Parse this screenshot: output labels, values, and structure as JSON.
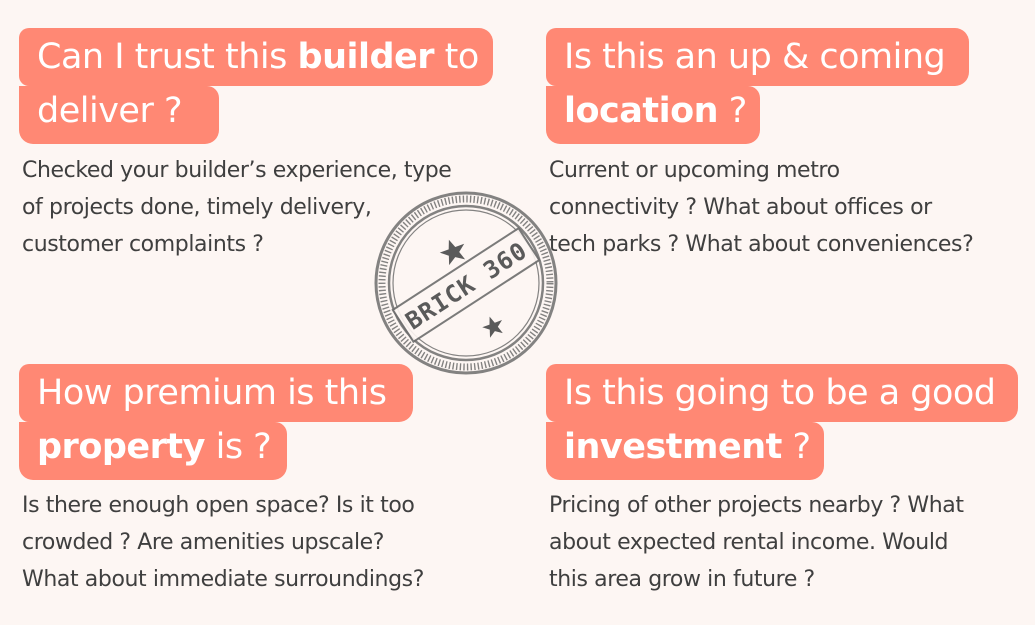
{
  "cards": [
    {
      "title_line1_pre": "Can I trust this ",
      "title_line1_bold": "builder",
      "title_line1_post": " to",
      "title_line2_pre": "deliver ?",
      "title_line2_bold": "",
      "title_line2_post": "",
      "desc": [
        "Checked your builder’s experience, type",
        "of projects done, timely delivery,",
        "customer complaints ?"
      ]
    },
    {
      "title_line1_pre": "Is this an up & coming",
      "title_line1_bold": "",
      "title_line1_post": "",
      "title_line2_pre": "",
      "title_line2_bold": "location",
      "title_line2_post": " ?",
      "desc": [
        "Current or upcoming metro",
        "connectivity ? What about offices or",
        "tech parks ? What about conveniences?"
      ]
    },
    {
      "title_line1_pre": "How premium is this",
      "title_line1_bold": "",
      "title_line1_post": "",
      "title_line2_pre": "",
      "title_line2_bold": "property",
      "title_line2_post": " is ?",
      "desc": [
        "Is there enough open space? Is it too",
        "crowded ? Are amenities upscale?",
        "What about immediate surroundings?"
      ]
    },
    {
      "title_line1_pre": "Is this going to be a good",
      "title_line1_bold": "",
      "title_line1_post": "",
      "title_line2_pre": "",
      "title_line2_bold": "investment",
      "title_line2_post": " ?",
      "desc": [
        "Pricing of other projects nearby ? What",
        "about expected rental income. Would",
        "this area grow in future ?"
      ]
    }
  ],
  "stamp": {
    "text": "BRICK 360",
    "icon": "star-icon"
  },
  "colors": {
    "background": "#fdf6f3",
    "accent": "#ff8874",
    "text": "#3f3f3f",
    "stamp": "#6e6e6e"
  }
}
